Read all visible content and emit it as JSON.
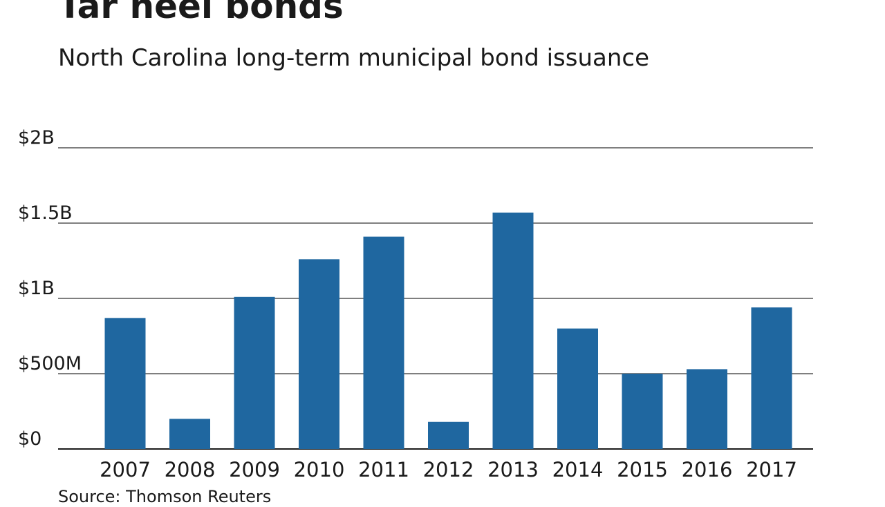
{
  "title": "Tar heel bonds",
  "subtitle": "North Carolina long-term municipal bond issuance",
  "source": "Source: Thomson Reuters",
  "colors": {
    "bar": "#1f67a0",
    "grid": "#555555",
    "axis": "#1a1a1a"
  },
  "chart_data": {
    "type": "bar",
    "title": "Tar heel bonds",
    "subtitle": "North Carolina long-term municipal bond issuance",
    "xlabel": "",
    "ylabel": "",
    "categories": [
      "2007",
      "2008",
      "2009",
      "2010",
      "2011",
      "2012",
      "2013",
      "2014",
      "2015",
      "2016",
      "2017"
    ],
    "values": [
      0.87,
      0.2,
      1.01,
      1.26,
      1.41,
      0.18,
      1.57,
      0.8,
      0.5,
      0.53,
      0.94
    ],
    "unit": "billions of dollars",
    "ylim": [
      0,
      2
    ],
    "yticks": [
      0,
      0.5,
      1,
      1.5,
      2
    ],
    "ytick_labels": [
      "$0",
      "$500M",
      "$1B",
      "$1.5B",
      "$2B"
    ],
    "grid": true,
    "legend": "none"
  }
}
